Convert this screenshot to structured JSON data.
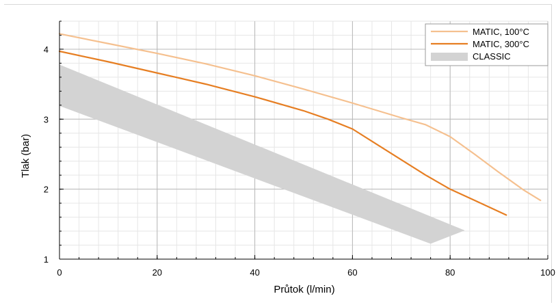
{
  "chart_data": {
    "type": "line",
    "title": "",
    "xlabel": "Průtok (l/min)",
    "ylabel": "Tlak (bar)",
    "xlim": [
      0,
      100
    ],
    "ylim": [
      1,
      4.4
    ],
    "x_ticks": [
      0,
      20,
      40,
      60,
      80,
      100
    ],
    "y_ticks": [
      1,
      2,
      3,
      4
    ],
    "x_tick_labels": [
      "0",
      "20",
      "40",
      "60",
      "80",
      "100"
    ],
    "y_tick_labels": [
      "1",
      "2",
      "3",
      "4"
    ],
    "grid": true,
    "legend_position": "top-right",
    "series": [
      {
        "name": "MATIC, 100°C",
        "color": "#f5c08f",
        "x": [
          0,
          10,
          20,
          30,
          40,
          50,
          60,
          70,
          75,
          80,
          85,
          90,
          95,
          98.5
        ],
        "y": [
          4.22,
          4.08,
          3.94,
          3.79,
          3.62,
          3.43,
          3.23,
          3.02,
          2.92,
          2.75,
          2.5,
          2.24,
          1.99,
          1.84
        ]
      },
      {
        "name": "MATIC, 300°C",
        "color": "#e67e22",
        "x": [
          0,
          10,
          20,
          30,
          40,
          50,
          55,
          60,
          65,
          70,
          75,
          80,
          85,
          91.5
        ],
        "y": [
          3.97,
          3.82,
          3.66,
          3.5,
          3.32,
          3.12,
          3.0,
          2.86,
          2.64,
          2.42,
          2.2,
          2.0,
          1.84,
          1.63
        ]
      },
      {
        "name": "CLASSIC",
        "color": "#d3d3d3",
        "band_upper": {
          "x": [
            0,
            83
          ],
          "y": [
            3.78,
            1.41
          ]
        },
        "band_lower": {
          "x": [
            0,
            76
          ],
          "y": [
            3.19,
            1.22
          ]
        }
      }
    ]
  }
}
